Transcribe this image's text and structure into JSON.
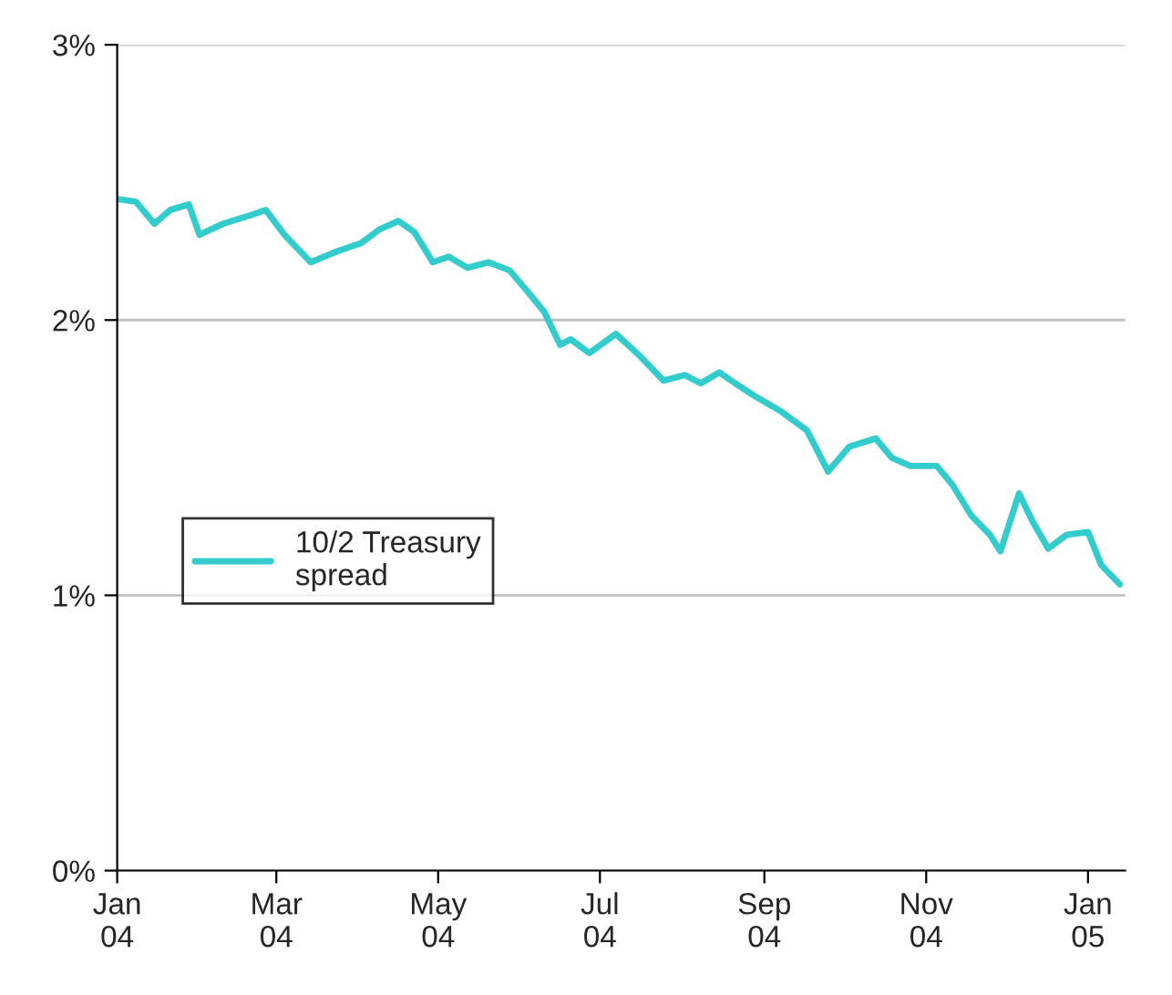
{
  "chart_data": {
    "type": "line",
    "x": [
      "2004-01-01",
      "2004-01-08",
      "2004-01-15",
      "2004-01-21",
      "2004-01-28",
      "2004-02-01",
      "2004-02-10",
      "2004-02-20",
      "2004-02-26",
      "2004-03-04",
      "2004-03-14",
      "2004-03-24",
      "2004-04-02",
      "2004-04-09",
      "2004-04-16",
      "2004-04-22",
      "2004-04-29",
      "2004-05-05",
      "2004-05-12",
      "2004-05-20",
      "2004-05-28",
      "2004-06-04",
      "2004-06-10",
      "2004-06-16",
      "2004-06-20",
      "2004-06-27",
      "2004-07-07",
      "2004-07-16",
      "2004-07-25",
      "2004-08-02",
      "2004-08-08",
      "2004-08-15",
      "2004-08-21",
      "2004-08-29",
      "2004-09-07",
      "2004-09-17",
      "2004-09-25",
      "2004-10-03",
      "2004-10-13",
      "2004-10-19",
      "2004-10-26",
      "2004-11-05",
      "2004-11-11",
      "2004-11-18",
      "2004-11-25",
      "2004-11-29",
      "2004-12-06",
      "2004-12-11",
      "2004-12-17",
      "2004-12-24",
      "2005-01-01",
      "2005-01-06",
      "2005-01-13"
    ],
    "series": [
      {
        "name": "10/2 Treasury\nspread",
        "color": "#33cccc",
        "values": [
          2.44,
          2.43,
          2.35,
          2.4,
          2.42,
          2.31,
          2.35,
          2.38,
          2.4,
          2.31,
          2.21,
          2.25,
          2.28,
          2.33,
          2.36,
          2.32,
          2.21,
          2.23,
          2.19,
          2.21,
          2.18,
          2.1,
          2.03,
          1.91,
          1.93,
          1.88,
          1.95,
          1.87,
          1.78,
          1.8,
          1.77,
          1.81,
          1.77,
          1.72,
          1.67,
          1.6,
          1.45,
          1.54,
          1.57,
          1.5,
          1.47,
          1.47,
          1.4,
          1.29,
          1.22,
          1.16,
          1.37,
          1.27,
          1.17,
          1.22,
          1.23,
          1.11,
          1.04
        ]
      }
    ],
    "xlim": [
      "2004-01-01",
      "2005-01-15"
    ],
    "xticks": [
      {
        "value": "2004-01-01",
        "label": "Jan\n04"
      },
      {
        "value": "2004-03-01",
        "label": "Mar\n04"
      },
      {
        "value": "2004-05-01",
        "label": "May\n04"
      },
      {
        "value": "2004-07-01",
        "label": "Jul\n04"
      },
      {
        "value": "2004-09-01",
        "label": "Sep\n04"
      },
      {
        "value": "2004-11-01",
        "label": "Nov\n04"
      },
      {
        "value": "2005-01-01",
        "label": "Jan\n05"
      }
    ],
    "ylim": [
      0,
      3
    ],
    "yticks": [
      {
        "value": 0,
        "label": "0%"
      },
      {
        "value": 1,
        "label": "1%"
      },
      {
        "value": 2,
        "label": "2%"
      },
      {
        "value": 3,
        "label": "3%"
      }
    ],
    "grid": "y",
    "legend": "left",
    "line_style": "solid",
    "marker": "none"
  }
}
